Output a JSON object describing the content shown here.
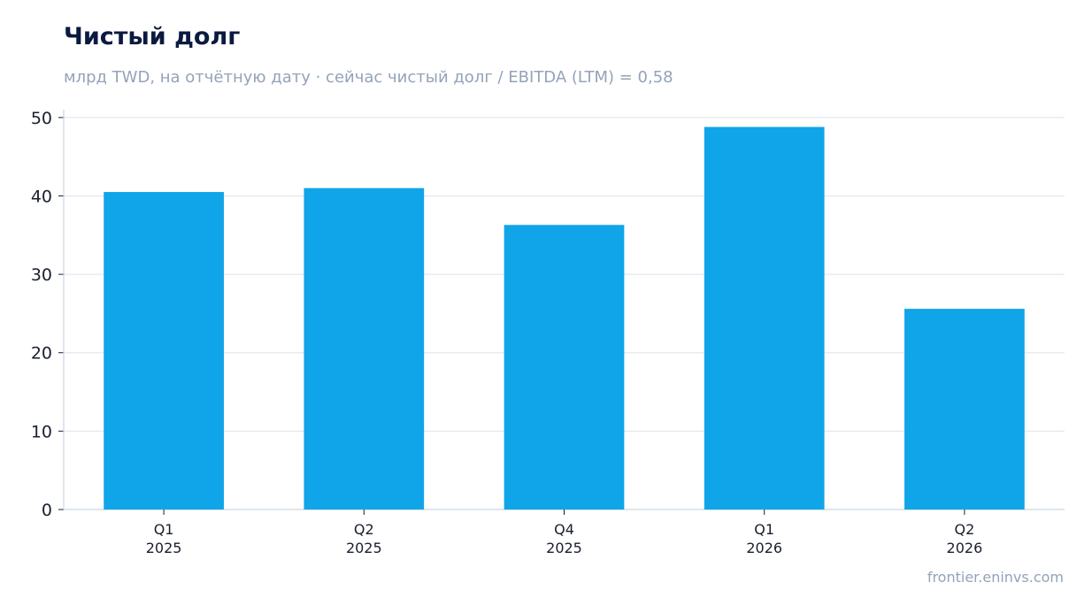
{
  "header": {
    "title": "Чистый долг",
    "subtitle": "млрд TWD, на отчётную дату · сейчас чистый долг / EBITDA (LTM) = 0,58"
  },
  "footer": {
    "source": "frontier.eninvs.com"
  },
  "colors": {
    "bar": "#10a5e8",
    "grid": "#e2e8f0",
    "axis": "#cbd5e1"
  },
  "chart_data": {
    "type": "bar",
    "title": "Чистый долг",
    "subtitle": "млрд TWD, на отчётную дату · сейчас чистый долг / EBITDA (LTM) = 0,58",
    "categories": [
      [
        "Q1",
        "2025"
      ],
      [
        "Q2",
        "2025"
      ],
      [
        "Q4",
        "2025"
      ],
      [
        "Q1",
        "2026"
      ],
      [
        "Q2",
        "2026"
      ]
    ],
    "values": [
      40.5,
      41.0,
      36.3,
      48.8,
      25.6
    ],
    "ylim": [
      0,
      51
    ],
    "yticks": [
      0,
      10,
      20,
      30,
      40,
      50
    ],
    "grid": true,
    "legend": "none"
  }
}
